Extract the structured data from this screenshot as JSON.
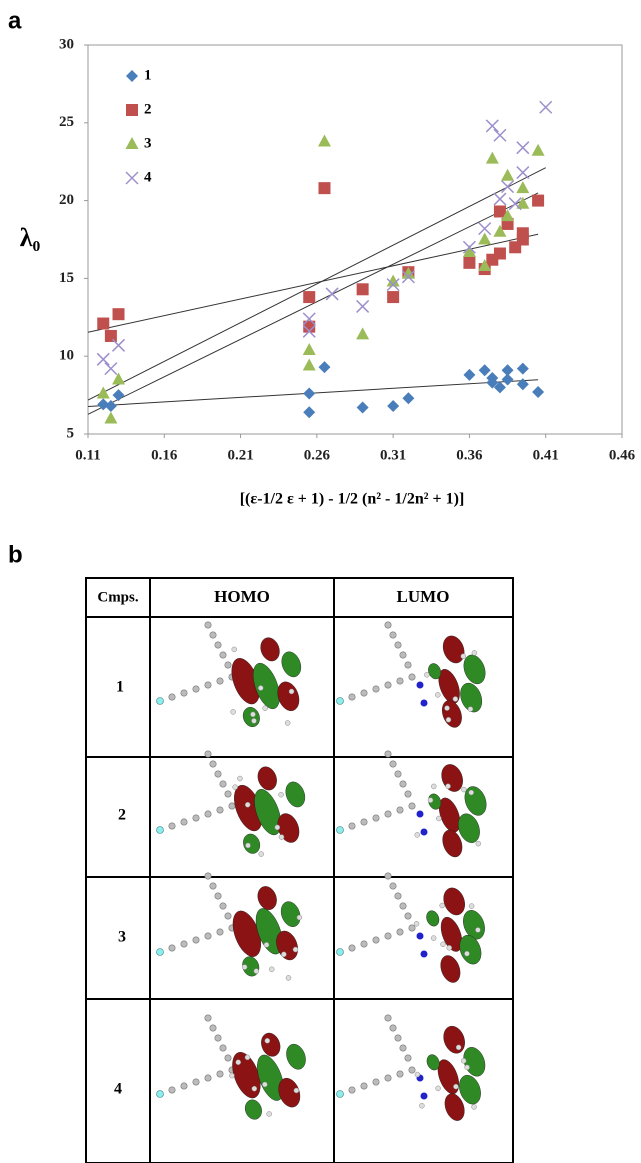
{
  "panel_labels": [
    "a",
    "b"
  ],
  "chart_data": {
    "type": "scatter",
    "xlabel": "[(ε-1/2 ε + 1) - 1/2 (n² - 1/2n² + 1)]",
    "ylabel": "λ₀",
    "xlim": [
      0.11,
      0.46
    ],
    "xticks": [
      0.11,
      0.16,
      0.21,
      0.26,
      0.31,
      0.36,
      0.41,
      0.46
    ],
    "ylim": [
      5,
      30
    ],
    "yticks": [
      5,
      10,
      15,
      20,
      25,
      30
    ],
    "grid": false,
    "legend": "upper-left",
    "trendline": true,
    "series": [
      {
        "name": "1",
        "color": "#4a7ebb",
        "marker": "diamond",
        "x": [
          0.12,
          0.125,
          0.13,
          0.255,
          0.255,
          0.265,
          0.29,
          0.31,
          0.32,
          0.36,
          0.37,
          0.375,
          0.375,
          0.38,
          0.385,
          0.385,
          0.395,
          0.395,
          0.405
        ],
        "values": [
          6.9,
          6.8,
          7.5,
          7.6,
          6.4,
          9.3,
          6.7,
          6.8,
          7.3,
          8.8,
          9.1,
          8.6,
          8.3,
          8.0,
          9.1,
          8.5,
          9.2,
          8.2,
          7.7
        ]
      },
      {
        "name": "2",
        "color": "#c0504d",
        "marker": "square",
        "x": [
          0.12,
          0.125,
          0.13,
          0.255,
          0.255,
          0.265,
          0.29,
          0.31,
          0.32,
          0.36,
          0.37,
          0.375,
          0.38,
          0.38,
          0.385,
          0.39,
          0.395,
          0.395,
          0.405
        ],
        "values": [
          12.1,
          11.3,
          12.7,
          13.8,
          11.9,
          20.8,
          14.3,
          13.8,
          15.4,
          16.0,
          15.6,
          16.2,
          19.3,
          16.6,
          18.5,
          17.0,
          17.9,
          17.5,
          20.0
        ]
      },
      {
        "name": "3",
        "color": "#9bbb59",
        "marker": "triangle",
        "x": [
          0.12,
          0.125,
          0.13,
          0.255,
          0.255,
          0.265,
          0.29,
          0.31,
          0.32,
          0.36,
          0.37,
          0.37,
          0.375,
          0.38,
          0.385,
          0.385,
          0.395,
          0.395,
          0.405
        ],
        "values": [
          7.6,
          6.0,
          8.5,
          10.4,
          9.4,
          23.8,
          11.4,
          14.8,
          15.3,
          16.7,
          15.8,
          17.5,
          22.7,
          18.0,
          21.6,
          19.0,
          20.8,
          19.8,
          23.2
        ]
      },
      {
        "name": "4",
        "color": "#9d8fcc",
        "marker": "x",
        "x": [
          0.12,
          0.125,
          0.13,
          0.255,
          0.255,
          0.27,
          0.29,
          0.31,
          0.32,
          0.36,
          0.37,
          0.375,
          0.38,
          0.38,
          0.385,
          0.39,
          0.395,
          0.395,
          0.41
        ],
        "values": [
          9.8,
          9.2,
          10.7,
          12.4,
          11.6,
          14.0,
          13.2,
          14.6,
          15.1,
          17.0,
          18.2,
          24.8,
          24.2,
          20.1,
          20.9,
          19.8,
          23.4,
          21.8,
          26.0
        ]
      }
    ]
  },
  "table": {
    "header": [
      "Cmps.",
      "HOMO",
      "LUMO"
    ],
    "rows": [
      [
        "1"
      ],
      [
        "2"
      ],
      [
        "3"
      ],
      [
        "4"
      ]
    ]
  }
}
